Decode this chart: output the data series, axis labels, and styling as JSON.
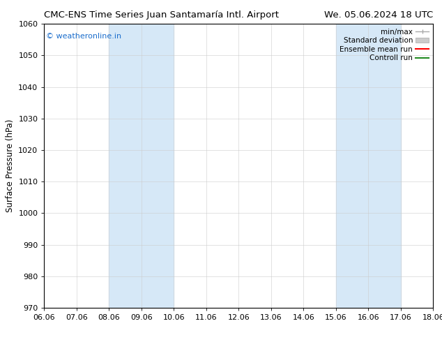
{
  "title_left": "CMC-ENS Time Series Juan Santamaría Intl. Airport",
  "title_right": "We. 05.06.2024 18 UTC",
  "ylabel": "Surface Pressure (hPa)",
  "watermark": "© weatheronline.in",
  "watermark_color": "#1a6dcc",
  "ylim": [
    970,
    1060
  ],
  "yticks": [
    970,
    980,
    990,
    1000,
    1010,
    1020,
    1030,
    1040,
    1050,
    1060
  ],
  "xtick_labels": [
    "06.06",
    "07.06",
    "08.06",
    "09.06",
    "10.06",
    "11.06",
    "12.06",
    "13.06",
    "14.06",
    "15.06",
    "16.06",
    "17.06",
    "18.06"
  ],
  "x_values": [
    0,
    1,
    2,
    3,
    4,
    5,
    6,
    7,
    8,
    9,
    10,
    11,
    12
  ],
  "shade_bands": [
    {
      "xmin": 2,
      "xmax": 4,
      "color": "#d6e8f7",
      "alpha": 1.0
    },
    {
      "xmin": 9,
      "xmax": 11,
      "color": "#d6e8f7",
      "alpha": 1.0
    }
  ],
  "legend_labels": [
    "min/max",
    "Standard deviation",
    "Ensemble mean run",
    "Controll run"
  ],
  "legend_colors_line": [
    "#aaaaaa",
    "#cccccc",
    "#ff0000",
    "#228b22"
  ],
  "bg_color": "#ffffff",
  "plot_bg_color": "#ffffff",
  "grid_color": "#cccccc",
  "title_fontsize": 9.5,
  "ylabel_fontsize": 8.5,
  "tick_fontsize": 8,
  "legend_fontsize": 7.5,
  "watermark_fontsize": 8
}
